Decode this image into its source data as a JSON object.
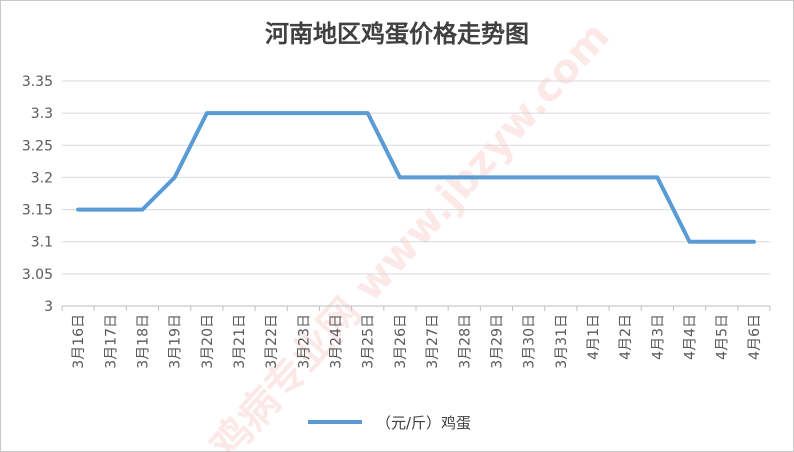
{
  "chart_data": {
    "type": "line",
    "title": "河南地区鸡蛋价格走势图",
    "xlabel": "",
    "ylabel": "",
    "categories": [
      "3月16日",
      "3月17日",
      "3月18日",
      "3月19日",
      "3月20日",
      "3月21日",
      "3月22日",
      "3月23日",
      "3月24日",
      "3月25日",
      "3月26日",
      "3月27日",
      "3月28日",
      "3月29日",
      "3月30日",
      "3月31日",
      "4月1日",
      "4月2日",
      "4月3日",
      "4月4日",
      "4月5日",
      "4月6日"
    ],
    "y_ticks": [
      "3",
      "3.05",
      "3.1",
      "3.15",
      "3.2",
      "3.25",
      "3.3",
      "3.35"
    ],
    "ylim": [
      3,
      3.35
    ],
    "grid": true,
    "legend_position": "bottom",
    "series": [
      {
        "name": "（元/斤）鸡蛋",
        "color": "#5b9bd5",
        "values": [
          3.15,
          3.15,
          3.15,
          3.2,
          3.3,
          3.3,
          3.3,
          3.3,
          3.3,
          3.3,
          3.2,
          3.2,
          3.2,
          3.2,
          3.2,
          3.2,
          3.2,
          3.2,
          3.2,
          3.1,
          3.1,
          3.1
        ]
      }
    ],
    "watermark": "鸡病专业网 www.jbzyw.com"
  }
}
